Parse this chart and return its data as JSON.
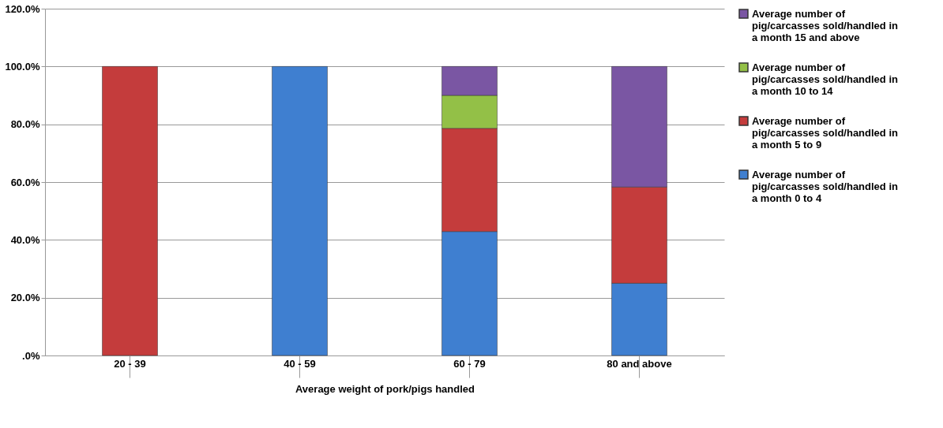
{
  "chart_data": {
    "type": "bar",
    "stacked": true,
    "xlabel": "Average weight of pork/pigs handled",
    "categories": [
      "20 - 39",
      "40 - 59",
      "60 - 79",
      "80 and above"
    ],
    "series": [
      {
        "name": "Average number of pig/carcasses sold/handled in a month 0 to 4",
        "color": "#3f7fd0",
        "values": [
          null,
          100,
          42.9,
          25.0
        ]
      },
      {
        "name": "Average number of pig/carcasses sold/handled in a month 5 to 9",
        "color": "#c43c3c",
        "values": [
          100,
          null,
          35.7,
          33.3
        ]
      },
      {
        "name": "Average number of pig/carcasses sold/handled in a month 10 to 14",
        "color": "#93c047",
        "values": [
          null,
          null,
          11.4,
          null
        ]
      },
      {
        "name": "Average number of pig/carcasses sold/handled in a month 15 and above",
        "color": "#7a56a3",
        "values": [
          null,
          null,
          10.0,
          41.7
        ]
      }
    ],
    "ylim": [
      0,
      120
    ],
    "yticks": [
      {
        "value": 0,
        "label": ".0%"
      },
      {
        "value": 20,
        "label": "20.0%"
      },
      {
        "value": 40,
        "label": "40.0%"
      },
      {
        "value": 60,
        "label": "60.0%"
      },
      {
        "value": 80,
        "label": "80.0%"
      },
      {
        "value": 100,
        "label": "100.0%"
      },
      {
        "value": 120,
        "label": "120.0%"
      }
    ],
    "grid": "y",
    "legend": "right"
  }
}
